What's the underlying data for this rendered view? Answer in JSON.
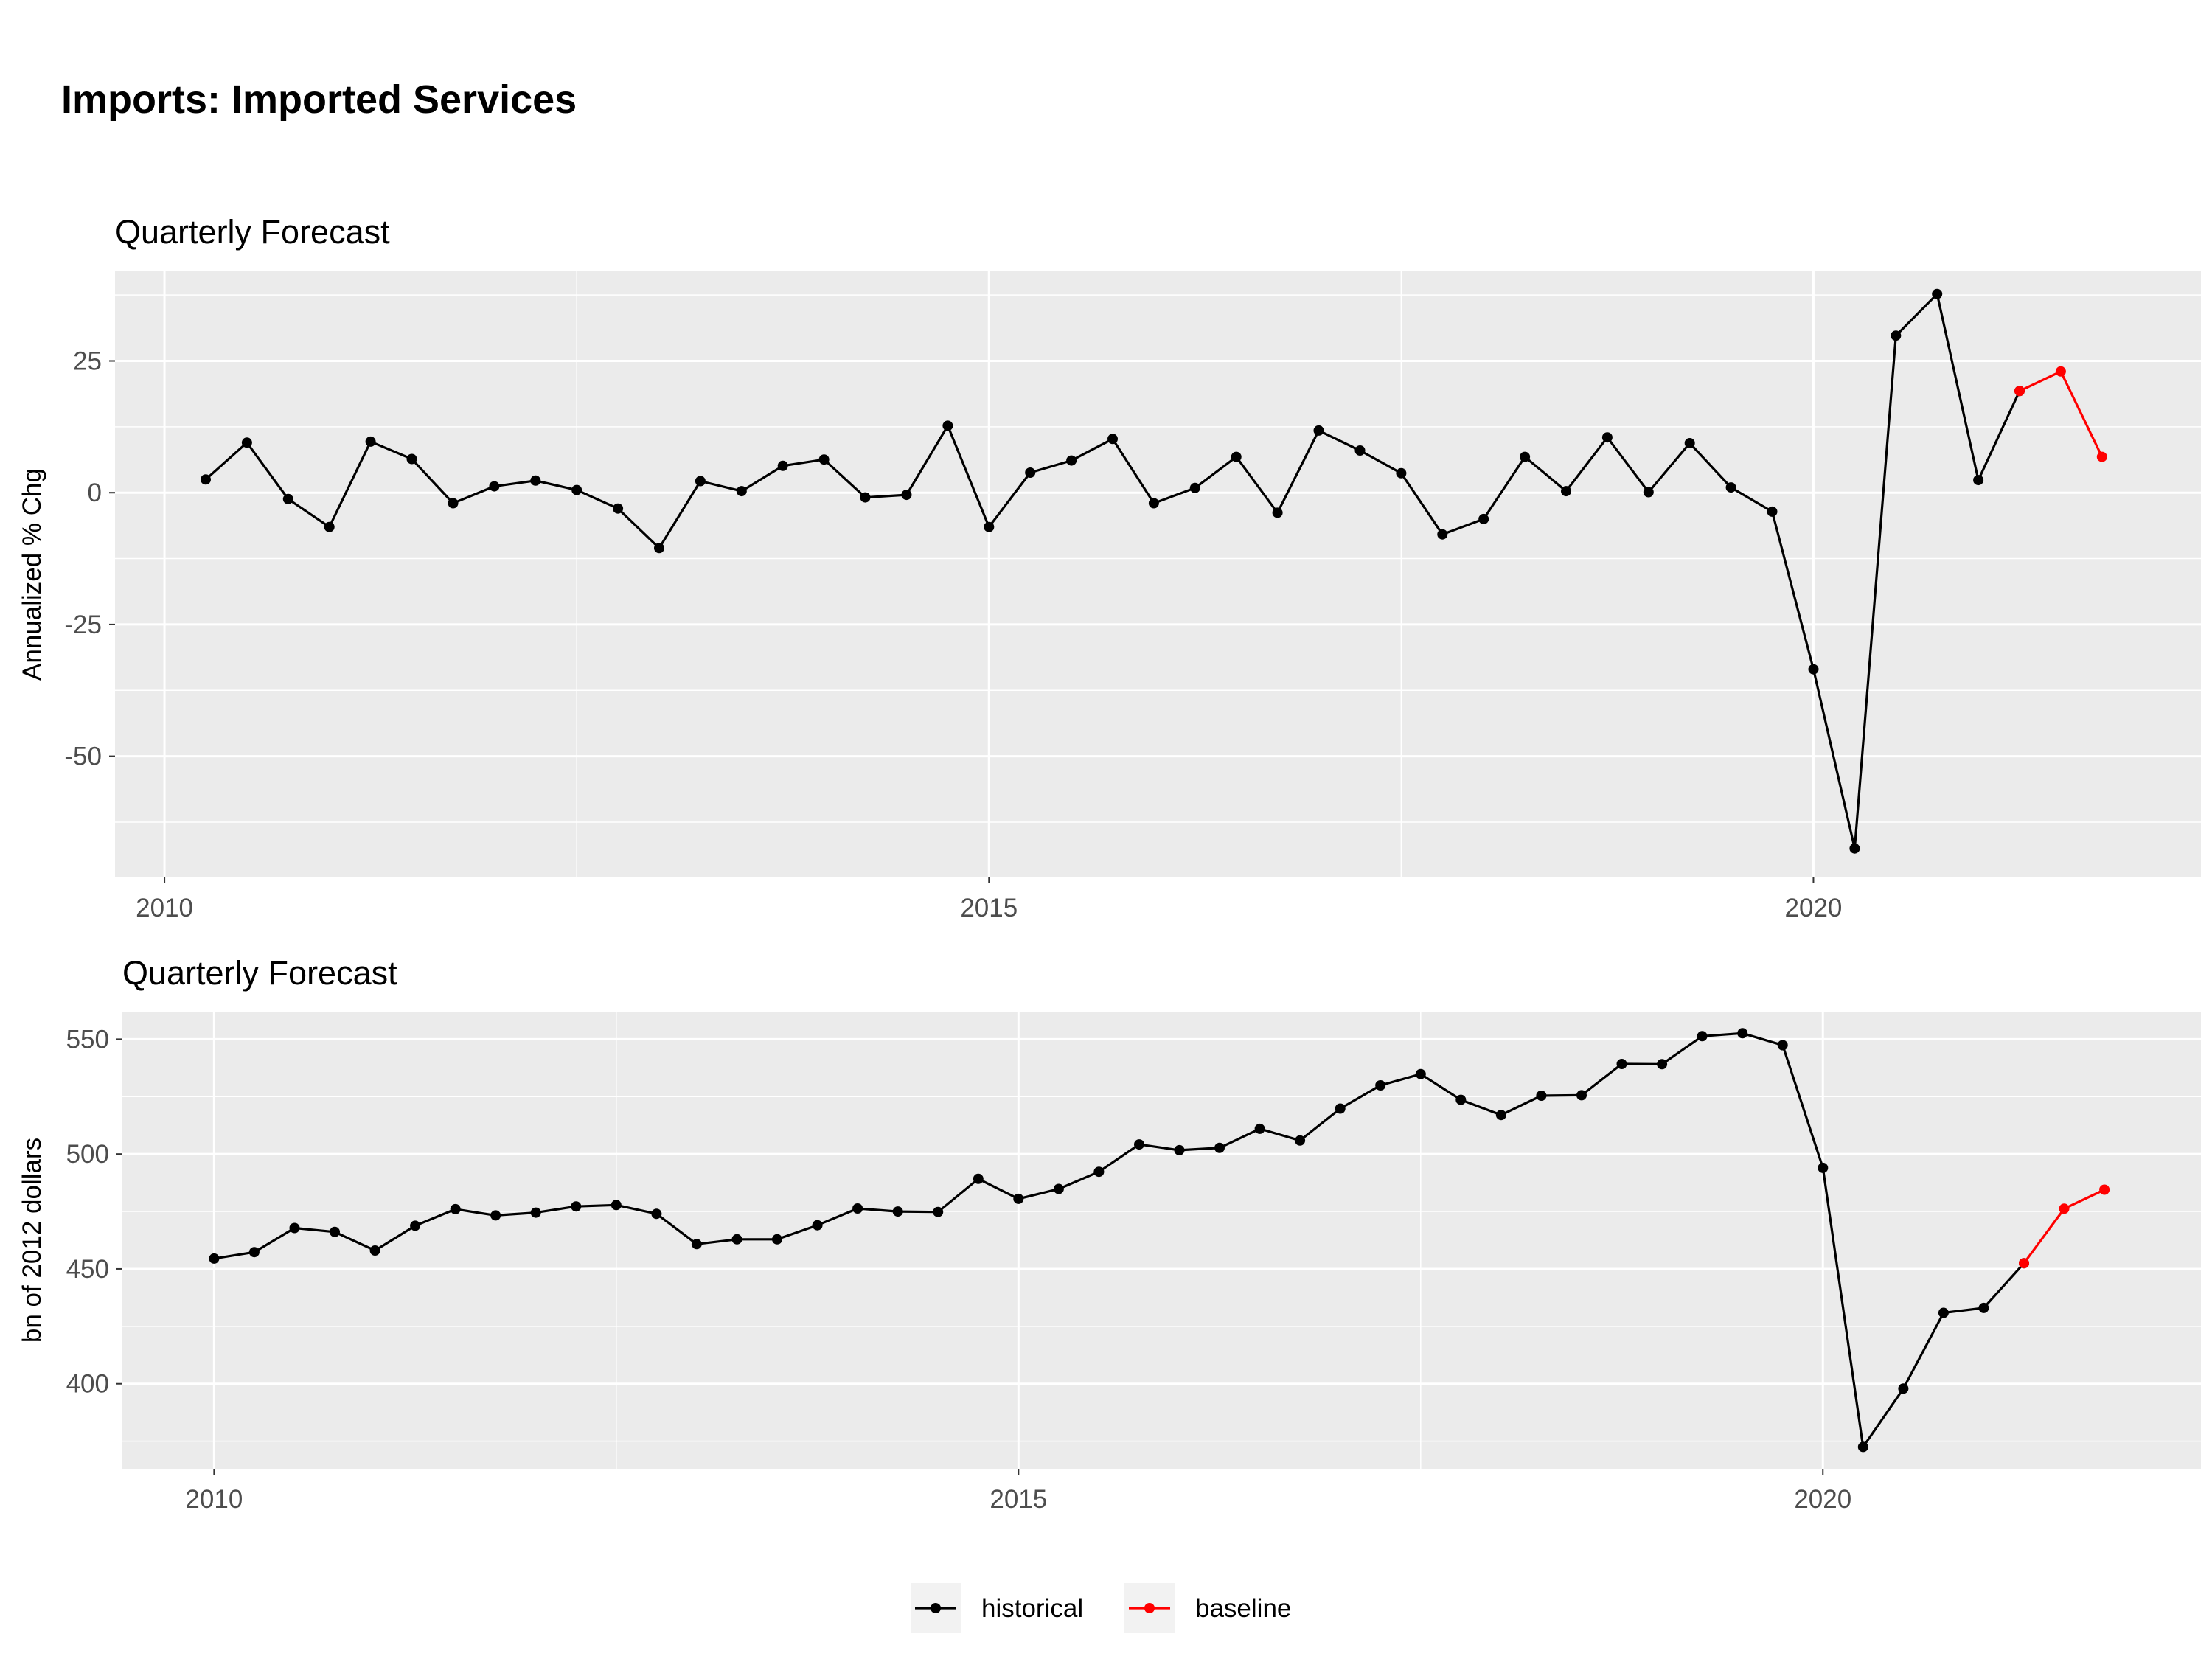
{
  "title": "Imports: Imported Services",
  "colors": {
    "historical": "#000000",
    "baseline": "#ff0000",
    "panel_bg": "#ebebeb",
    "grid": "#ffffff",
    "tick_text": "#4d4d4d"
  },
  "legend": {
    "position": "bottom",
    "items": [
      {
        "key": "historical",
        "label": "historical"
      },
      {
        "key": "baseline",
        "label": "baseline"
      }
    ]
  },
  "chart_data": [
    {
      "type": "line",
      "title": "Quarterly Forecast",
      "xlabel": "",
      "ylabel": "Annualized % Chg",
      "x_start": {
        "year": 2010,
        "quarter": 2
      },
      "x_ticks": [
        2010,
        2015,
        2020
      ],
      "xlim": [
        2009.7,
        2022.35
      ],
      "y_ticks": [
        25,
        0,
        -25,
        -50
      ],
      "ylim": [
        -73,
        42
      ],
      "grid": true,
      "series": [
        {
          "name": "historical",
          "values": [
            2.5,
            9.5,
            -1.2,
            -6.5,
            9.7,
            6.4,
            -2.0,
            1.2,
            2.3,
            0.5,
            -3.0,
            -10.5,
            2.2,
            0.3,
            5.1,
            6.3,
            -0.9,
            -0.4,
            12.7,
            -6.5,
            3.8,
            6.1,
            10.2,
            -2.0,
            0.9,
            6.8,
            -3.8,
            11.8,
            8.0,
            3.7,
            -7.9,
            -5.0,
            6.8,
            0.3,
            10.5,
            0.1,
            9.4,
            1.0,
            -3.6,
            -33.5,
            -67.5,
            29.8,
            37.7,
            2.4,
            19.3
          ]
        },
        {
          "name": "baseline",
          "x_offset": 44,
          "values": [
            19.3,
            23.0,
            6.8
          ]
        }
      ]
    },
    {
      "type": "line",
      "title": "Quarterly Forecast",
      "xlabel": "",
      "ylabel": "bn of 2012 dollars",
      "x_start": {
        "year": 2010,
        "quarter": 1
      },
      "x_ticks": [
        2010,
        2015,
        2020
      ],
      "xlim": [
        2009.43,
        2022.35
      ],
      "y_ticks": [
        550,
        500,
        450,
        400
      ],
      "ylim": [
        363,
        562
      ],
      "grid": true,
      "series": [
        {
          "name": "historical",
          "values": [
            454.5,
            457.3,
            467.8,
            466.1,
            458.0,
            468.8,
            476.0,
            473.3,
            474.5,
            477.2,
            477.8,
            474.0,
            460.8,
            462.9,
            462.9,
            469.0,
            476.3,
            475.0,
            474.8,
            489.2,
            480.5,
            484.8,
            492.3,
            504.2,
            501.7,
            502.7,
            511.0,
            505.9,
            519.8,
            529.9,
            534.8,
            523.6,
            517.0,
            525.4,
            525.6,
            539.2,
            539.1,
            551.3,
            552.6,
            547.4,
            494.0,
            372.5,
            397.9,
            430.9,
            433.0,
            452.5
          ]
        },
        {
          "name": "baseline",
          "x_offset": 45,
          "values": [
            452.5,
            476.2,
            484.5
          ]
        }
      ]
    }
  ]
}
